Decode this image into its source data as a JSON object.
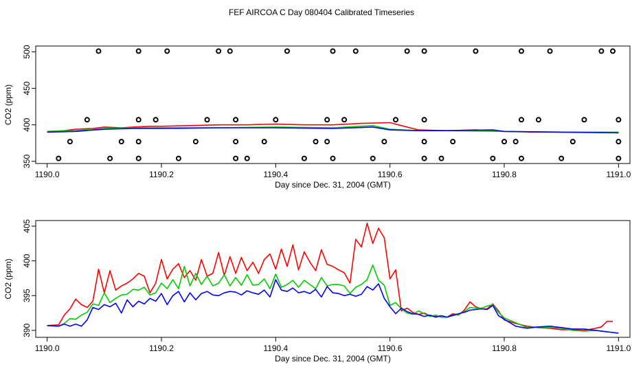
{
  "figure_title": "FEF AIRCOA C  Day 080404  Calibrated Timeseries",
  "chart_data": [
    {
      "type": "line",
      "title": "",
      "xlabel": "Day since Dec. 31, 2004 (GMT)",
      "ylabel": "CO2 (ppm)",
      "xlim": [
        1189.98,
        1191.02
      ],
      "ylim": [
        347,
        508
      ],
      "xticks": [
        1190.0,
        1190.2,
        1190.4,
        1190.6,
        1190.8,
        1191.0
      ],
      "xtick_labels": [
        "1190.0",
        "1190.2",
        "1190.4",
        "1190.6",
        "1190.8",
        "1191.0"
      ],
      "yticks": [
        350,
        400,
        450,
        500
      ],
      "ytick_labels": [
        "350",
        "400",
        "450",
        "500"
      ],
      "grid": false,
      "series": [
        {
          "color": "#ff0000",
          "x": [
            1190.0,
            1190.03,
            1190.05,
            1190.08,
            1190.1,
            1190.13,
            1190.15,
            1190.18,
            1190.2,
            1190.25,
            1190.3,
            1190.35,
            1190.4,
            1190.45,
            1190.5,
            1190.55,
            1190.6,
            1190.62,
            1190.65,
            1190.7,
            1190.75,
            1190.8,
            1190.85,
            1190.9,
            1190.95,
            1191.0
          ],
          "y": [
            391,
            392,
            394,
            395,
            397,
            396,
            397,
            398,
            398,
            399,
            400,
            400,
            401,
            400,
            400,
            402,
            403,
            399,
            393,
            392,
            393,
            391,
            390,
            390,
            390,
            390
          ]
        },
        {
          "color": "#00cc00",
          "x": [
            1190.0,
            1190.05,
            1190.1,
            1190.15,
            1190.2,
            1190.3,
            1190.4,
            1190.5,
            1190.57,
            1190.6,
            1190.65,
            1190.7,
            1190.8,
            1190.9,
            1191.0
          ],
          "y": [
            391,
            392,
            395,
            396,
            396,
            396,
            397,
            396,
            399,
            394,
            392,
            392,
            391,
            390,
            390
          ]
        },
        {
          "color": "#0000ff",
          "x": [
            1190.0,
            1190.05,
            1190.1,
            1190.15,
            1190.2,
            1190.3,
            1190.4,
            1190.5,
            1190.57,
            1190.6,
            1190.65,
            1190.7,
            1190.78,
            1190.8,
            1190.9,
            1191.0
          ],
          "y": [
            390,
            391,
            394,
            395,
            395,
            396,
            396,
            395,
            397,
            393,
            392,
            392,
            393,
            391,
            390,
            389
          ]
        }
      ],
      "markers": {
        "style": "open-circle",
        "x": [
          1190.02,
          1190.04,
          1190.07,
          1190.09,
          1190.11,
          1190.13,
          1190.16,
          1190.16,
          1190.16,
          1190.16,
          1190.19,
          1190.21,
          1190.23,
          1190.26,
          1190.28,
          1190.3,
          1190.32,
          1190.33,
          1190.33,
          1190.33,
          1190.35,
          1190.38,
          1190.4,
          1190.42,
          1190.45,
          1190.47,
          1190.49,
          1190.49,
          1190.5,
          1190.5,
          1190.52,
          1190.54,
          1190.57,
          1190.59,
          1190.61,
          1190.63,
          1190.66,
          1190.66,
          1190.66,
          1190.66,
          1190.69,
          1190.71,
          1190.75,
          1190.78,
          1190.8,
          1190.82,
          1190.83,
          1190.83,
          1190.83,
          1190.86,
          1190.88,
          1190.9,
          1190.92,
          1190.94,
          1190.97,
          1190.99,
          1191.0,
          1191.0,
          1191.0
        ],
        "y": [
          354,
          377,
          407,
          501,
          354,
          377,
          354,
          377,
          407,
          501,
          407,
          501,
          354,
          377,
          407,
          501,
          501,
          354,
          377,
          407,
          354,
          377,
          407,
          501,
          354,
          377,
          377,
          407,
          354,
          501,
          407,
          501,
          354,
          377,
          407,
          501,
          354,
          377,
          407,
          501,
          354,
          377,
          501,
          354,
          377,
          377,
          354,
          407,
          501,
          407,
          501,
          354,
          377,
          407,
          501,
          501,
          354,
          377,
          407
        ]
      }
    },
    {
      "type": "line",
      "title": "",
      "xlabel": "Day since Dec. 31, 2004 (GMT)",
      "ylabel": "CO2 (ppm)",
      "xlim": [
        1189.98,
        1191.02
      ],
      "ylim": [
        389.0,
        405.8
      ],
      "xticks": [
        1190.0,
        1190.2,
        1190.4,
        1190.6,
        1190.8,
        1191.0
      ],
      "xtick_labels": [
        "1190.0",
        "1190.2",
        "1190.4",
        "1190.6",
        "1190.8",
        "1191.0"
      ],
      "yticks": [
        390,
        395,
        400,
        405
      ],
      "ytick_labels": [
        "390",
        "395",
        "400",
        "405"
      ],
      "grid": false,
      "series": [
        {
          "color": "#ff0000",
          "x": [
            1190.0,
            1190.02,
            1190.03,
            1190.04,
            1190.05,
            1190.06,
            1190.07,
            1190.08,
            1190.09,
            1190.1,
            1190.11,
            1190.12,
            1190.13,
            1190.14,
            1190.15,
            1190.16,
            1190.17,
            1190.18,
            1190.19,
            1190.2,
            1190.21,
            1190.22,
            1190.23,
            1190.24,
            1190.25,
            1190.26,
            1190.27,
            1190.28,
            1190.29,
            1190.3,
            1190.31,
            1190.32,
            1190.33,
            1190.34,
            1190.35,
            1190.36,
            1190.37,
            1190.38,
            1190.39,
            1190.4,
            1190.41,
            1190.42,
            1190.43,
            1190.44,
            1190.45,
            1190.46,
            1190.47,
            1190.48,
            1190.49,
            1190.5,
            1190.51,
            1190.52,
            1190.53,
            1190.54,
            1190.55,
            1190.56,
            1190.57,
            1190.58,
            1190.59,
            1190.6,
            1190.61,
            1190.62,
            1190.63,
            1190.64,
            1190.65,
            1190.66,
            1190.67,
            1190.68,
            1190.69,
            1190.7,
            1190.71,
            1190.72,
            1190.73,
            1190.74,
            1190.75,
            1190.76,
            1190.77,
            1190.78,
            1190.79,
            1190.8,
            1190.82,
            1190.84,
            1190.86,
            1190.88,
            1190.9,
            1190.92,
            1190.94,
            1190.96,
            1190.97,
            1190.98,
            1190.99
          ],
          "y": [
            390.7,
            390.8,
            392.2,
            393.1,
            394.5,
            393.7,
            393.3,
            394.2,
            398.8,
            395.4,
            398.6,
            395.8,
            396.4,
            396.8,
            397.4,
            398.2,
            397.8,
            395.4,
            396.8,
            400.2,
            397.4,
            398.8,
            399.6,
            397.6,
            398.6,
            397.2,
            400.2,
            397.8,
            398.2,
            401.2,
            397.9,
            400.6,
            398.2,
            400.5,
            398.6,
            399.8,
            398.2,
            400.2,
            401.0,
            398.8,
            401.7,
            399.2,
            402.3,
            398.7,
            401.3,
            399.8,
            398.6,
            401.6,
            399.5,
            399.2,
            398.7,
            398.3,
            396.8,
            403.1,
            402.0,
            405.4,
            402.5,
            404.7,
            403.3,
            397.4,
            398.7,
            392.8,
            393.2,
            392.6,
            392.3,
            392.5,
            392.1,
            392.0,
            392.1,
            391.9,
            392.4,
            392.2,
            392.9,
            394.1,
            393.4,
            393.1,
            393.1,
            393.8,
            392.8,
            391.5,
            391.0,
            390.6,
            390.4,
            390.3,
            390.1,
            390.1,
            390.0,
            390.3,
            390.5,
            391.3,
            391.3
          ]
        },
        {
          "color": "#00cc00",
          "x": [
            1190.0,
            1190.02,
            1190.03,
            1190.04,
            1190.05,
            1190.06,
            1190.07,
            1190.08,
            1190.09,
            1190.1,
            1190.11,
            1190.12,
            1190.13,
            1190.14,
            1190.15,
            1190.16,
            1190.17,
            1190.18,
            1190.19,
            1190.2,
            1190.21,
            1190.22,
            1190.23,
            1190.24,
            1190.25,
            1190.26,
            1190.27,
            1190.28,
            1190.29,
            1190.3,
            1190.31,
            1190.32,
            1190.33,
            1190.34,
            1190.35,
            1190.36,
            1190.37,
            1190.38,
            1190.39,
            1190.4,
            1190.41,
            1190.42,
            1190.43,
            1190.44,
            1190.45,
            1190.46,
            1190.47,
            1190.48,
            1190.49,
            1190.5,
            1190.51,
            1190.52,
            1190.53,
            1190.54,
            1190.55,
            1190.56,
            1190.57,
            1190.58,
            1190.59,
            1190.6,
            1190.61,
            1190.62,
            1190.63,
            1190.64,
            1190.65,
            1190.66,
            1190.67,
            1190.68,
            1190.69,
            1190.7,
            1190.71,
            1190.72,
            1190.73,
            1190.74,
            1190.75,
            1190.76,
            1190.77,
            1190.78,
            1190.79,
            1190.8,
            1190.82,
            1190.84,
            1190.86,
            1190.88,
            1190.9,
            1190.92,
            1190.94,
            1190.96,
            1190.98
          ],
          "y": [
            390.7,
            390.6,
            391.0,
            391.7,
            391.6,
            392.2,
            392.6,
            393.8,
            393.6,
            395.4,
            394.0,
            394.6,
            395.1,
            395.2,
            395.9,
            395.8,
            396.2,
            395.1,
            395.4,
            396.8,
            396.0,
            397.3,
            396.0,
            399.2,
            396.4,
            398.2,
            396.6,
            397.8,
            396.4,
            396.8,
            398.0,
            396.4,
            397.6,
            396.5,
            398.0,
            396.5,
            396.6,
            397.4,
            396.0,
            398.1,
            396.2,
            396.6,
            397.2,
            396.2,
            397.2,
            396.6,
            396.0,
            397.6,
            396.4,
            396.6,
            396.6,
            396.4,
            395.3,
            396.2,
            396.6,
            397.3,
            399.4,
            397.2,
            396.5,
            393.6,
            394.0,
            393.1,
            392.5,
            392.3,
            392.8,
            392.4,
            392.0,
            392.2,
            391.9,
            391.9,
            392.1,
            392.3,
            392.7,
            393.3,
            393.2,
            393.2,
            393.5,
            393.7,
            392.6,
            391.8,
            391.1,
            390.4,
            390.5,
            390.4,
            390.3,
            390.0,
            389.9,
            390.0,
            389.8
          ]
        },
        {
          "color": "#0000ff",
          "x": [
            1190.0,
            1190.02,
            1190.03,
            1190.04,
            1190.05,
            1190.06,
            1190.07,
            1190.08,
            1190.09,
            1190.1,
            1190.11,
            1190.12,
            1190.13,
            1190.14,
            1190.15,
            1190.16,
            1190.17,
            1190.18,
            1190.19,
            1190.2,
            1190.21,
            1190.22,
            1190.23,
            1190.24,
            1190.25,
            1190.26,
            1190.27,
            1190.28,
            1190.29,
            1190.3,
            1190.31,
            1190.32,
            1190.33,
            1190.34,
            1190.35,
            1190.36,
            1190.37,
            1190.38,
            1190.39,
            1190.4,
            1190.41,
            1190.42,
            1190.43,
            1190.44,
            1190.45,
            1190.46,
            1190.47,
            1190.48,
            1190.49,
            1190.5,
            1190.51,
            1190.52,
            1190.53,
            1190.54,
            1190.55,
            1190.56,
            1190.57,
            1190.58,
            1190.59,
            1190.6,
            1190.61,
            1190.62,
            1190.63,
            1190.64,
            1190.65,
            1190.66,
            1190.67,
            1190.68,
            1190.69,
            1190.7,
            1190.71,
            1190.72,
            1190.73,
            1190.74,
            1190.75,
            1190.76,
            1190.77,
            1190.78,
            1190.79,
            1190.8,
            1190.82,
            1190.84,
            1190.86,
            1190.88,
            1190.9,
            1190.92,
            1190.94,
            1190.96,
            1190.98,
            1191.0
          ],
          "y": [
            390.7,
            390.6,
            390.9,
            390.6,
            390.9,
            390.6,
            391.5,
            393.3,
            393.0,
            393.7,
            393.4,
            393.9,
            392.5,
            394.4,
            393.4,
            394.2,
            393.8,
            394.6,
            394.2,
            395.3,
            393.7,
            395.0,
            395.6,
            394.1,
            395.4,
            394.4,
            395.3,
            395.6,
            395.1,
            395.0,
            395.4,
            395.6,
            395.5,
            395.1,
            395.7,
            395.4,
            395.2,
            395.8,
            394.8,
            397.3,
            395.8,
            395.6,
            396.1,
            395.4,
            395.6,
            395.3,
            395.9,
            394.8,
            396.3,
            395.4,
            395.3,
            395.0,
            395.2,
            394.9,
            395.2,
            396.3,
            395.8,
            396.7,
            394.6,
            393.4,
            392.4,
            393.2,
            392.7,
            392.4,
            392.3,
            392.0,
            392.2,
            391.9,
            392.1,
            391.9,
            392.2,
            392.4,
            392.6,
            392.9,
            393.0,
            393.1,
            393.0,
            393.6,
            392.1,
            391.6,
            390.6,
            390.3,
            390.5,
            390.6,
            390.4,
            390.2,
            390.2,
            390.0,
            389.8,
            389.6
          ]
        }
      ]
    }
  ]
}
